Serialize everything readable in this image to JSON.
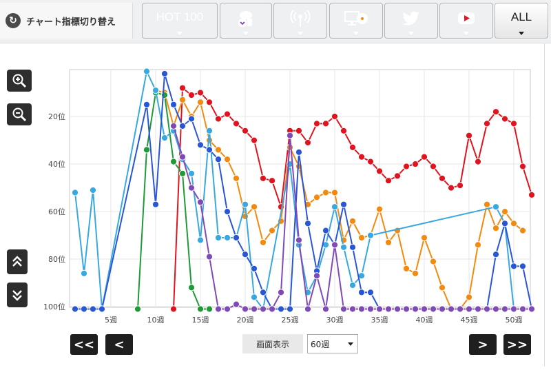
{
  "toolbar": {
    "switch_label": "チャート指標切り替え",
    "tabs": [
      {
        "id": "hot100",
        "label": "HOT 100",
        "color": "#2b54d6",
        "icon": ""
      },
      {
        "id": "download",
        "label": "",
        "color": "#7d45b5",
        "icon": "download-icon"
      },
      {
        "id": "radio",
        "label": "",
        "color": "#1e9a37",
        "icon": "radio-icon"
      },
      {
        "id": "lookup",
        "label": "",
        "color": "#ef8a18",
        "icon": "pc-cd-icon"
      },
      {
        "id": "twitter",
        "label": "",
        "color": "#35a8e0",
        "icon": "twitter-icon"
      },
      {
        "id": "youtube",
        "label": "",
        "color": "#d61e2a",
        "icon": "youtube-icon"
      },
      {
        "id": "all",
        "label": "ALL",
        "color": "#ffffff",
        "icon": ""
      }
    ]
  },
  "controls": {
    "zoom_in": "zoom-in-icon",
    "zoom_out": "zoom-out-icon",
    "scroll_up": "double-chevron-up-icon",
    "scroll_down": "double-chevron-down-icon"
  },
  "footer": {
    "first": "<<",
    "prev": "<",
    "next": ">",
    "last": ">>",
    "period_label": "画面表示",
    "period_value": "60週"
  },
  "chart_data": {
    "type": "line",
    "xlim": [
      1,
      52.5
    ],
    "ylim": [
      0,
      101
    ],
    "y_reversed": true,
    "x_ticks": [
      5,
      10,
      15,
      20,
      25,
      30,
      35,
      40,
      45,
      50
    ],
    "x_tick_labels": [
      "5週",
      "10週",
      "15週",
      "20週",
      "25週",
      "30週",
      "35週",
      "40週",
      "45週",
      "50週"
    ],
    "y_ticks": [
      20,
      40,
      60,
      80,
      100
    ],
    "y_tick_labels": [
      "20位",
      "40位",
      "60位",
      "80位",
      "100位"
    ],
    "grid": true,
    "series": [
      {
        "color": "#e0141e",
        "points": [
          [
            12,
            101
          ],
          [
            13,
            8
          ],
          [
            14,
            11
          ],
          [
            15,
            10
          ],
          [
            16,
            14
          ],
          [
            17,
            21
          ],
          [
            18,
            19
          ],
          [
            19,
            23
          ],
          [
            20,
            26
          ],
          [
            21,
            30
          ],
          [
            22,
            46
          ],
          [
            23,
            47
          ],
          [
            24,
            58
          ],
          [
            25,
            26
          ],
          [
            26,
            26
          ],
          [
            27,
            31
          ],
          [
            28,
            23
          ],
          [
            29,
            23
          ],
          [
            30,
            20
          ],
          [
            31,
            26
          ],
          [
            32,
            33
          ],
          [
            33,
            37
          ],
          [
            34,
            39
          ],
          [
            35,
            43
          ],
          [
            36,
            47
          ],
          [
            37,
            45
          ],
          [
            38,
            41
          ],
          [
            39,
            40
          ],
          [
            40,
            37
          ],
          [
            41,
            41
          ],
          [
            42,
            46
          ],
          [
            43,
            50
          ],
          [
            44,
            49
          ],
          [
            45,
            28
          ],
          [
            46,
            39
          ],
          [
            47,
            23
          ],
          [
            48,
            18
          ],
          [
            49,
            21
          ],
          [
            50,
            23
          ],
          [
            51,
            41
          ],
          [
            52,
            53
          ],
          [
            53,
            38
          ]
        ]
      },
      {
        "color": "#f28a10",
        "points": [
          [
            10,
            9
          ],
          [
            11,
            10
          ],
          [
            12,
            24
          ],
          [
            13,
            13
          ],
          [
            14,
            20
          ],
          [
            15,
            14
          ],
          [
            16,
            30
          ],
          [
            17,
            34
          ],
          [
            18,
            38
          ],
          [
            19,
            46
          ],
          [
            20,
            62
          ],
          [
            21,
            58
          ],
          [
            22,
            73
          ],
          [
            23,
            68
          ],
          [
            24,
            64
          ],
          [
            25,
            33
          ],
          [
            26,
            41
          ],
          [
            27,
            57
          ],
          [
            28,
            54
          ],
          [
            29,
            52
          ],
          [
            30,
            52
          ],
          [
            31,
            72
          ],
          [
            32,
            64
          ],
          [
            33,
            71
          ],
          [
            34,
            70
          ],
          [
            35,
            59
          ],
          [
            36,
            73
          ],
          [
            37,
            68
          ],
          [
            38,
            84
          ],
          [
            39,
            86
          ],
          [
            40,
            71
          ],
          [
            41,
            81
          ],
          [
            42,
            92
          ],
          [
            43,
            101
          ],
          [
            44,
            101
          ],
          [
            45,
            96
          ],
          [
            46,
            74
          ],
          [
            47,
            57
          ],
          [
            48,
            67
          ],
          [
            49,
            60
          ],
          [
            50,
            65
          ],
          [
            51,
            68
          ]
        ]
      },
      {
        "color": "#1e9a37",
        "points": [
          [
            8,
            101
          ],
          [
            9,
            34
          ],
          [
            10,
            10
          ],
          [
            11,
            11
          ],
          [
            12,
            39
          ],
          [
            13,
            44
          ],
          [
            14,
            92
          ],
          [
            15,
            101
          ],
          [
            16,
            101
          ]
        ]
      },
      {
        "color": "#38a8e0",
        "points": [
          [
            1,
            52
          ],
          [
            2,
            86
          ],
          [
            3,
            51
          ],
          [
            4,
            101
          ],
          [
            9,
            1
          ],
          [
            10,
            9
          ],
          [
            11,
            29
          ],
          [
            12,
            26
          ],
          [
            13,
            38
          ],
          [
            14,
            44
          ],
          [
            15,
            72
          ],
          [
            16,
            26
          ],
          [
            17,
            71
          ],
          [
            18,
            71
          ],
          [
            19,
            71
          ],
          [
            20,
            57
          ],
          [
            21,
            96
          ],
          [
            22,
            101
          ],
          [
            25,
            40
          ],
          [
            26,
            74
          ],
          [
            27,
            94
          ],
          [
            28,
            87
          ],
          [
            29,
            74
          ],
          [
            30,
            58
          ],
          [
            31,
            75
          ],
          [
            32,
            91
          ],
          [
            33,
            87
          ],
          [
            34,
            70
          ],
          [
            48,
            58
          ],
          [
            49,
            65
          ],
          [
            50,
            101
          ]
        ]
      },
      {
        "color": "#2956d6",
        "points": [
          [
            1,
            101
          ],
          [
            2,
            101
          ],
          [
            3,
            101
          ],
          [
            4,
            101
          ],
          [
            9,
            15
          ],
          [
            10,
            57
          ],
          [
            11,
            2
          ],
          [
            12,
            15
          ],
          [
            13,
            24
          ],
          [
            14,
            21
          ],
          [
            15,
            32
          ],
          [
            16,
            34
          ],
          [
            17,
            38
          ],
          [
            18,
            60
          ],
          [
            19,
            71
          ],
          [
            20,
            78
          ],
          [
            21,
            84
          ],
          [
            22,
            94
          ],
          [
            23,
            101
          ],
          [
            24,
            101
          ],
          [
            25,
            101
          ],
          [
            26,
            35
          ],
          [
            27,
            65
          ],
          [
            28,
            85
          ],
          [
            29,
            68
          ],
          [
            30,
            74
          ],
          [
            31,
            57
          ],
          [
            32,
            75
          ],
          [
            33,
            94
          ],
          [
            34,
            94
          ],
          [
            35,
            101
          ],
          [
            36,
            101
          ],
          [
            37,
            101
          ],
          [
            38,
            101
          ],
          [
            39,
            101
          ],
          [
            40,
            101
          ],
          [
            41,
            101
          ],
          [
            42,
            101
          ],
          [
            43,
            101
          ],
          [
            44,
            101
          ],
          [
            45,
            101
          ],
          [
            46,
            101
          ],
          [
            47,
            101
          ],
          [
            48,
            78
          ],
          [
            49,
            65
          ],
          [
            50,
            83
          ],
          [
            51,
            83
          ],
          [
            52,
            101
          ],
          [
            53,
            101
          ]
        ]
      },
      {
        "color": "#7f4ab8",
        "points": [
          [
            12,
            24
          ],
          [
            13,
            37
          ],
          [
            14,
            50
          ],
          [
            15,
            56
          ],
          [
            16,
            79
          ],
          [
            17,
            101
          ],
          [
            18,
            101
          ],
          [
            19,
            99
          ],
          [
            20,
            101
          ],
          [
            21,
            101
          ],
          [
            22,
            101
          ],
          [
            23,
            101
          ],
          [
            24,
            94
          ],
          [
            25,
            28
          ],
          [
            26,
            72
          ],
          [
            27,
            101
          ],
          [
            28,
            87
          ],
          [
            29,
            101
          ],
          [
            30,
            74
          ],
          [
            31,
            101
          ],
          [
            32,
            101
          ],
          [
            33,
            101
          ],
          [
            34,
            101
          ],
          [
            35,
            101
          ],
          [
            36,
            101
          ],
          [
            37,
            101
          ],
          [
            38,
            101
          ],
          [
            39,
            101
          ],
          [
            40,
            101
          ],
          [
            41,
            101
          ],
          [
            42,
            101
          ],
          [
            43,
            101
          ],
          [
            44,
            101
          ],
          [
            45,
            101
          ],
          [
            46,
            101
          ],
          [
            47,
            101
          ],
          [
            48,
            101
          ],
          [
            49,
            101
          ],
          [
            50,
            101
          ],
          [
            51,
            101
          ],
          [
            52,
            101
          ],
          [
            53,
            101
          ]
        ]
      }
    ]
  }
}
